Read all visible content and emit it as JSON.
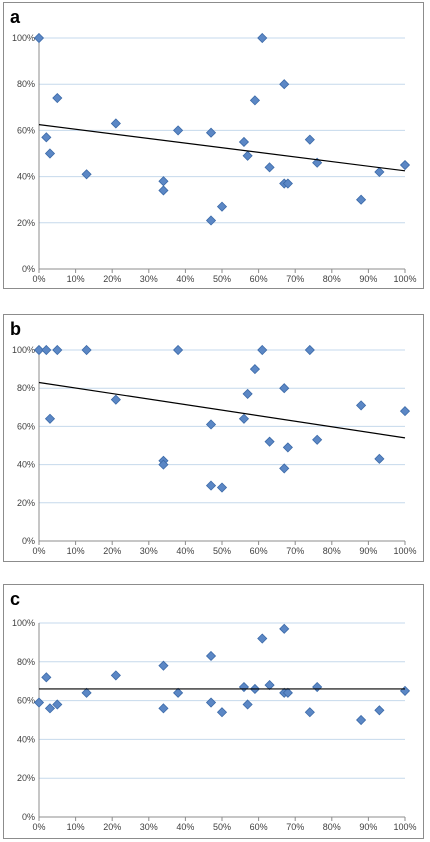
{
  "colors": {
    "marker_fill": "#5b87c5",
    "marker_stroke": "#3c6aa8",
    "gridline": "#c6d9ec",
    "axis": "#8c8c8c",
    "trendline": "#000000"
  },
  "chart_data": [
    {
      "type": "scatter",
      "panel_label": "a",
      "xlim": [
        0,
        100
      ],
      "ylim": [
        0,
        100
      ],
      "x_ticks": [
        "0%",
        "10%",
        "20%",
        "30%",
        "40%",
        "50%",
        "60%",
        "70%",
        "80%",
        "90%",
        "100%"
      ],
      "y_ticks": [
        "0%",
        "20%",
        "40%",
        "60%",
        "80%",
        "100%"
      ],
      "marker": "diamond",
      "grid": "horizontal",
      "legend": "none",
      "series": [
        {
          "points": [
            [
              0,
              100
            ],
            [
              2,
              57
            ],
            [
              3,
              50
            ],
            [
              5,
              74
            ],
            [
              13,
              41
            ],
            [
              21,
              63
            ],
            [
              34,
              38
            ],
            [
              34,
              34
            ],
            [
              38,
              60
            ],
            [
              47,
              59
            ],
            [
              47,
              21
            ],
            [
              50,
              27
            ],
            [
              56,
              55
            ],
            [
              57,
              49
            ],
            [
              59,
              73
            ],
            [
              61,
              100
            ],
            [
              63,
              44
            ],
            [
              67,
              80
            ],
            [
              67,
              37
            ],
            [
              68,
              37
            ],
            [
              74,
              56
            ],
            [
              76,
              46
            ],
            [
              88,
              30
            ],
            [
              93,
              42
            ],
            [
              100,
              45
            ]
          ]
        }
      ],
      "trendline": {
        "x": [
          0,
          100
        ],
        "y": [
          62.5,
          42.5
        ]
      }
    },
    {
      "type": "scatter",
      "panel_label": "b",
      "xlim": [
        0,
        100
      ],
      "ylim": [
        0,
        100
      ],
      "x_ticks": [
        "0%",
        "10%",
        "20%",
        "30%",
        "40%",
        "50%",
        "60%",
        "70%",
        "80%",
        "90%",
        "100%"
      ],
      "y_ticks": [
        "0%",
        "20%",
        "40%",
        "60%",
        "80%",
        "100%"
      ],
      "marker": "diamond",
      "grid": "horizontal",
      "legend": "none",
      "series": [
        {
          "points": [
            [
              0,
              100
            ],
            [
              2,
              100
            ],
            [
              3,
              64
            ],
            [
              5,
              100
            ],
            [
              13,
              100
            ],
            [
              21,
              74
            ],
            [
              34,
              42
            ],
            [
              34,
              40
            ],
            [
              38,
              100
            ],
            [
              47,
              61
            ],
            [
              47,
              29
            ],
            [
              50,
              28
            ],
            [
              56,
              64
            ],
            [
              57,
              77
            ],
            [
              59,
              90
            ],
            [
              61,
              100
            ],
            [
              63,
              52
            ],
            [
              67,
              80
            ],
            [
              67,
              38
            ],
            [
              68,
              49
            ],
            [
              74,
              100
            ],
            [
              76,
              53
            ],
            [
              88,
              71
            ],
            [
              93,
              43
            ],
            [
              100,
              68
            ]
          ]
        }
      ],
      "trendline": {
        "x": [
          0,
          100
        ],
        "y": [
          83,
          54
        ]
      }
    },
    {
      "type": "scatter",
      "panel_label": "c",
      "xlim": [
        0,
        100
      ],
      "ylim": [
        0,
        100
      ],
      "x_ticks": [
        "0%",
        "10%",
        "20%",
        "30%",
        "40%",
        "50%",
        "60%",
        "70%",
        "80%",
        "90%",
        "100%"
      ],
      "y_ticks": [
        "0%",
        "20%",
        "40%",
        "60%",
        "80%",
        "100%"
      ],
      "marker": "diamond",
      "grid": "horizontal",
      "legend": "none",
      "series": [
        {
          "points": [
            [
              0,
              59
            ],
            [
              2,
              72
            ],
            [
              3,
              56
            ],
            [
              5,
              58
            ],
            [
              13,
              64
            ],
            [
              21,
              73
            ],
            [
              34,
              78
            ],
            [
              34,
              56
            ],
            [
              38,
              64
            ],
            [
              47,
              83
            ],
            [
              47,
              59
            ],
            [
              50,
              54
            ],
            [
              56,
              67
            ],
            [
              57,
              58
            ],
            [
              59,
              66
            ],
            [
              61,
              92
            ],
            [
              63,
              68
            ],
            [
              67,
              97
            ],
            [
              67,
              64
            ],
            [
              68,
              64
            ],
            [
              74,
              54
            ],
            [
              76,
              67
            ],
            [
              88,
              50
            ],
            [
              93,
              55
            ],
            [
              100,
              65
            ]
          ]
        }
      ],
      "trendline": {
        "x": [
          0,
          100
        ],
        "y": [
          66,
          66
        ]
      }
    }
  ]
}
